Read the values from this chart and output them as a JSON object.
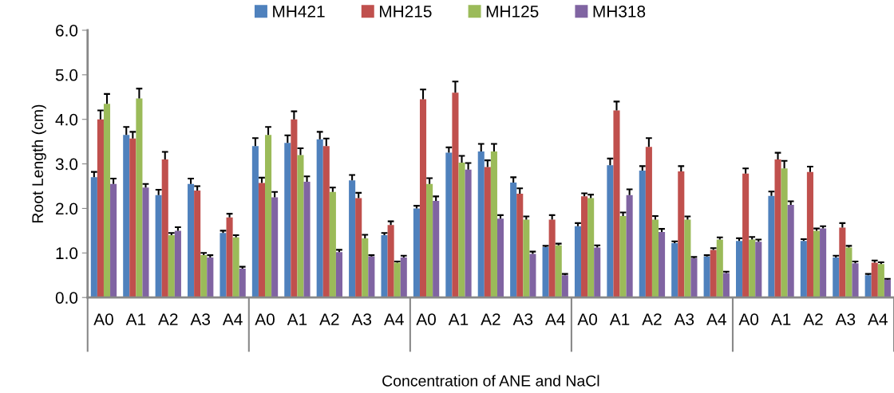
{
  "chart_data": {
    "type": "bar",
    "xlabel": "Concentration of ANE and NaCl",
    "ylabel": "Root Length (cm)",
    "categories": [
      "A0",
      "A1",
      "A2",
      "A3",
      "A4",
      "A0",
      "A1",
      "A2",
      "A3",
      "A4",
      "A0",
      "A1",
      "A2",
      "A3",
      "A4",
      "A0",
      "A1",
      "A2",
      "A3",
      "A4",
      "A0",
      "A1",
      "A2",
      "A3",
      "A4"
    ],
    "series": [
      {
        "name": "MH421",
        "color": "#4f81bd",
        "values": [
          2.7,
          3.65,
          2.3,
          2.55,
          1.45,
          3.4,
          3.47,
          3.55,
          2.63,
          1.4,
          2.0,
          3.25,
          3.28,
          2.58,
          1.13,
          1.6,
          2.97,
          2.85,
          1.22,
          0.92,
          1.27,
          2.28,
          1.27,
          0.9,
          0.5
        ],
        "errors": [
          [
            2.7,
            2.82
          ],
          [
            3.65,
            3.83
          ],
          [
            2.3,
            2.42
          ],
          [
            2.55,
            2.67
          ],
          [
            1.45,
            1.5
          ],
          [
            3.4,
            3.58
          ],
          [
            3.47,
            3.64
          ],
          [
            3.55,
            3.72
          ],
          [
            2.63,
            2.75
          ],
          [
            1.4,
            1.45
          ],
          [
            2.0,
            2.06
          ],
          [
            3.25,
            3.37
          ],
          [
            3.28,
            3.45
          ],
          [
            2.58,
            2.7
          ],
          [
            1.13,
            1.16
          ],
          [
            1.6,
            1.67
          ],
          [
            2.97,
            3.12
          ],
          [
            2.85,
            2.95
          ],
          [
            1.22,
            1.26
          ],
          [
            0.92,
            0.95
          ],
          [
            1.27,
            1.33
          ],
          [
            2.28,
            2.38
          ],
          [
            1.27,
            1.31
          ],
          [
            0.9,
            0.94
          ],
          [
            0.5,
            0.53
          ]
        ]
      },
      {
        "name": "MH215",
        "color": "#c0504d",
        "values": [
          4.0,
          3.57,
          3.1,
          2.4,
          1.8,
          2.57,
          4.0,
          3.4,
          2.23,
          1.63,
          4.45,
          4.6,
          2.93,
          2.33,
          1.75,
          2.27,
          4.2,
          3.38,
          2.83,
          1.07,
          2.78,
          3.1,
          2.82,
          1.57,
          0.78
        ],
        "errors": [
          [
            4.0,
            4.2
          ],
          [
            3.57,
            3.72
          ],
          [
            3.1,
            3.27
          ],
          [
            2.4,
            2.5
          ],
          [
            1.8,
            1.88
          ],
          [
            2.57,
            2.69
          ],
          [
            4.0,
            4.18
          ],
          [
            3.4,
            3.57
          ],
          [
            2.23,
            2.35
          ],
          [
            1.63,
            1.71
          ],
          [
            4.45,
            4.67
          ],
          [
            4.6,
            4.85
          ],
          [
            2.93,
            3.08
          ],
          [
            2.33,
            2.45
          ],
          [
            1.75,
            1.85
          ],
          [
            2.27,
            2.34
          ],
          [
            4.2,
            4.4
          ],
          [
            3.38,
            3.58
          ],
          [
            2.83,
            2.95
          ],
          [
            1.07,
            1.11
          ],
          [
            2.78,
            2.9
          ],
          [
            3.1,
            3.25
          ],
          [
            2.82,
            2.94
          ],
          [
            1.57,
            1.67
          ],
          [
            0.78,
            0.83
          ]
        ]
      },
      {
        "name": "MH125",
        "color": "#9bbb59",
        "values": [
          4.35,
          4.47,
          1.4,
          0.95,
          1.35,
          3.65,
          3.2,
          2.37,
          1.33,
          0.78,
          2.55,
          3.03,
          3.28,
          1.75,
          1.17,
          2.23,
          1.83,
          1.75,
          1.75,
          1.3,
          1.3,
          2.9,
          1.5,
          1.12,
          0.75
        ],
        "errors": [
          [
            4.35,
            4.57
          ],
          [
            4.47,
            4.69
          ],
          [
            1.4,
            1.45
          ],
          [
            0.95,
            1.0
          ],
          [
            1.35,
            1.4
          ],
          [
            3.65,
            3.83
          ],
          [
            3.2,
            3.35
          ],
          [
            2.37,
            2.47
          ],
          [
            1.33,
            1.41
          ],
          [
            0.78,
            0.81
          ],
          [
            2.55,
            2.68
          ],
          [
            3.03,
            3.18
          ],
          [
            3.28,
            3.45
          ],
          [
            1.75,
            1.82
          ],
          [
            1.17,
            1.21
          ],
          [
            2.23,
            2.31
          ],
          [
            1.83,
            1.91
          ],
          [
            1.75,
            1.83
          ],
          [
            1.75,
            1.82
          ],
          [
            1.3,
            1.35
          ],
          [
            1.3,
            1.36
          ],
          [
            2.9,
            3.07
          ],
          [
            1.5,
            1.55
          ],
          [
            1.12,
            1.16
          ],
          [
            0.75,
            0.79
          ]
        ]
      },
      {
        "name": "MH318",
        "color": "#8064a2",
        "values": [
          2.55,
          2.47,
          1.5,
          0.9,
          0.65,
          2.25,
          2.6,
          1.02,
          0.92,
          0.9,
          2.17,
          2.87,
          1.77,
          0.98,
          0.5,
          1.12,
          2.3,
          1.47,
          0.88,
          0.55,
          1.25,
          2.08,
          1.55,
          0.77,
          0.4
        ],
        "errors": [
          [
            2.55,
            2.67
          ],
          [
            2.47,
            2.55
          ],
          [
            1.5,
            1.58
          ],
          [
            0.9,
            0.95
          ],
          [
            0.65,
            0.69
          ],
          [
            2.25,
            2.37
          ],
          [
            2.6,
            2.72
          ],
          [
            1.02,
            1.07
          ],
          [
            0.92,
            0.95
          ],
          [
            0.9,
            0.94
          ],
          [
            2.17,
            2.27
          ],
          [
            2.87,
            3.02
          ],
          [
            1.77,
            1.85
          ],
          [
            0.98,
            1.03
          ],
          [
            0.5,
            0.53
          ],
          [
            1.12,
            1.17
          ],
          [
            2.3,
            2.43
          ],
          [
            1.47,
            1.54
          ],
          [
            0.88,
            0.91
          ],
          [
            0.55,
            0.58
          ],
          [
            1.25,
            1.3
          ],
          [
            2.08,
            2.16
          ],
          [
            1.55,
            1.6
          ],
          [
            0.77,
            0.81
          ],
          [
            0.4,
            0.42
          ]
        ]
      }
    ],
    "ylim": [
      0,
      6
    ],
    "yticks": [
      {
        "value": 0,
        "label": "0.0"
      },
      {
        "value": 1,
        "label": "1.0"
      },
      {
        "value": 2,
        "label": "2.0"
      },
      {
        "value": 3,
        "label": "3.0"
      },
      {
        "value": 4,
        "label": "4.0"
      },
      {
        "value": 5,
        "label": "5.0"
      },
      {
        "value": 6,
        "label": "6.0"
      }
    ],
    "grid": false,
    "legend": "top"
  }
}
